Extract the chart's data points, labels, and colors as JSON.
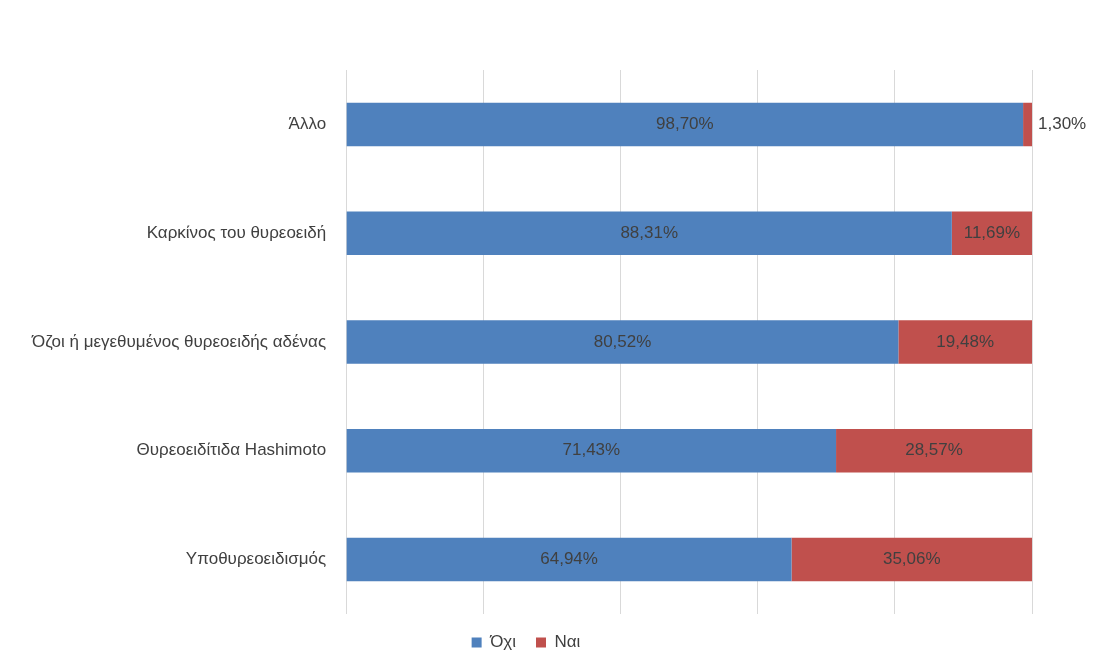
{
  "chart_data": {
    "type": "bar",
    "orientation": "horizontal",
    "stacked": true,
    "categories": [
      "Άλλο",
      "Καρκίνος του θυρεοειδή",
      "Όζοι ή μεγεθυμένος θυρεοειδής αδένας",
      "Θυρεοειδίτιδα Hashimoto",
      "Υποθυρεοειδισμός"
    ],
    "series": [
      {
        "name": "Όχι",
        "color": "#4f81bd",
        "values": [
          98.7,
          88.31,
          80.52,
          71.43,
          64.94
        ],
        "value_labels": [
          "98,70%",
          "88,31%",
          "80,52%",
          "71,43%",
          "64,94%"
        ]
      },
      {
        "name": "Ναι",
        "color": "#c0504d",
        "values": [
          1.3,
          11.69,
          19.48,
          28.57,
          35.06
        ],
        "value_labels": [
          "1,30%",
          "11,69%",
          "19,48%",
          "28,57%",
          "35,06%"
        ]
      }
    ],
    "xlim": [
      0,
      100
    ],
    "xticks": [
      {
        "value": 0,
        "label": null
      },
      {
        "value": 20,
        "label": null
      },
      {
        "value": 40,
        "label": null
      },
      {
        "value": 60,
        "label": null
      },
      {
        "value": 80,
        "label": null
      },
      {
        "value": 100,
        "label": null
      }
    ],
    "grid": "x",
    "legend": "bottom",
    "tick_labels": "y"
  }
}
